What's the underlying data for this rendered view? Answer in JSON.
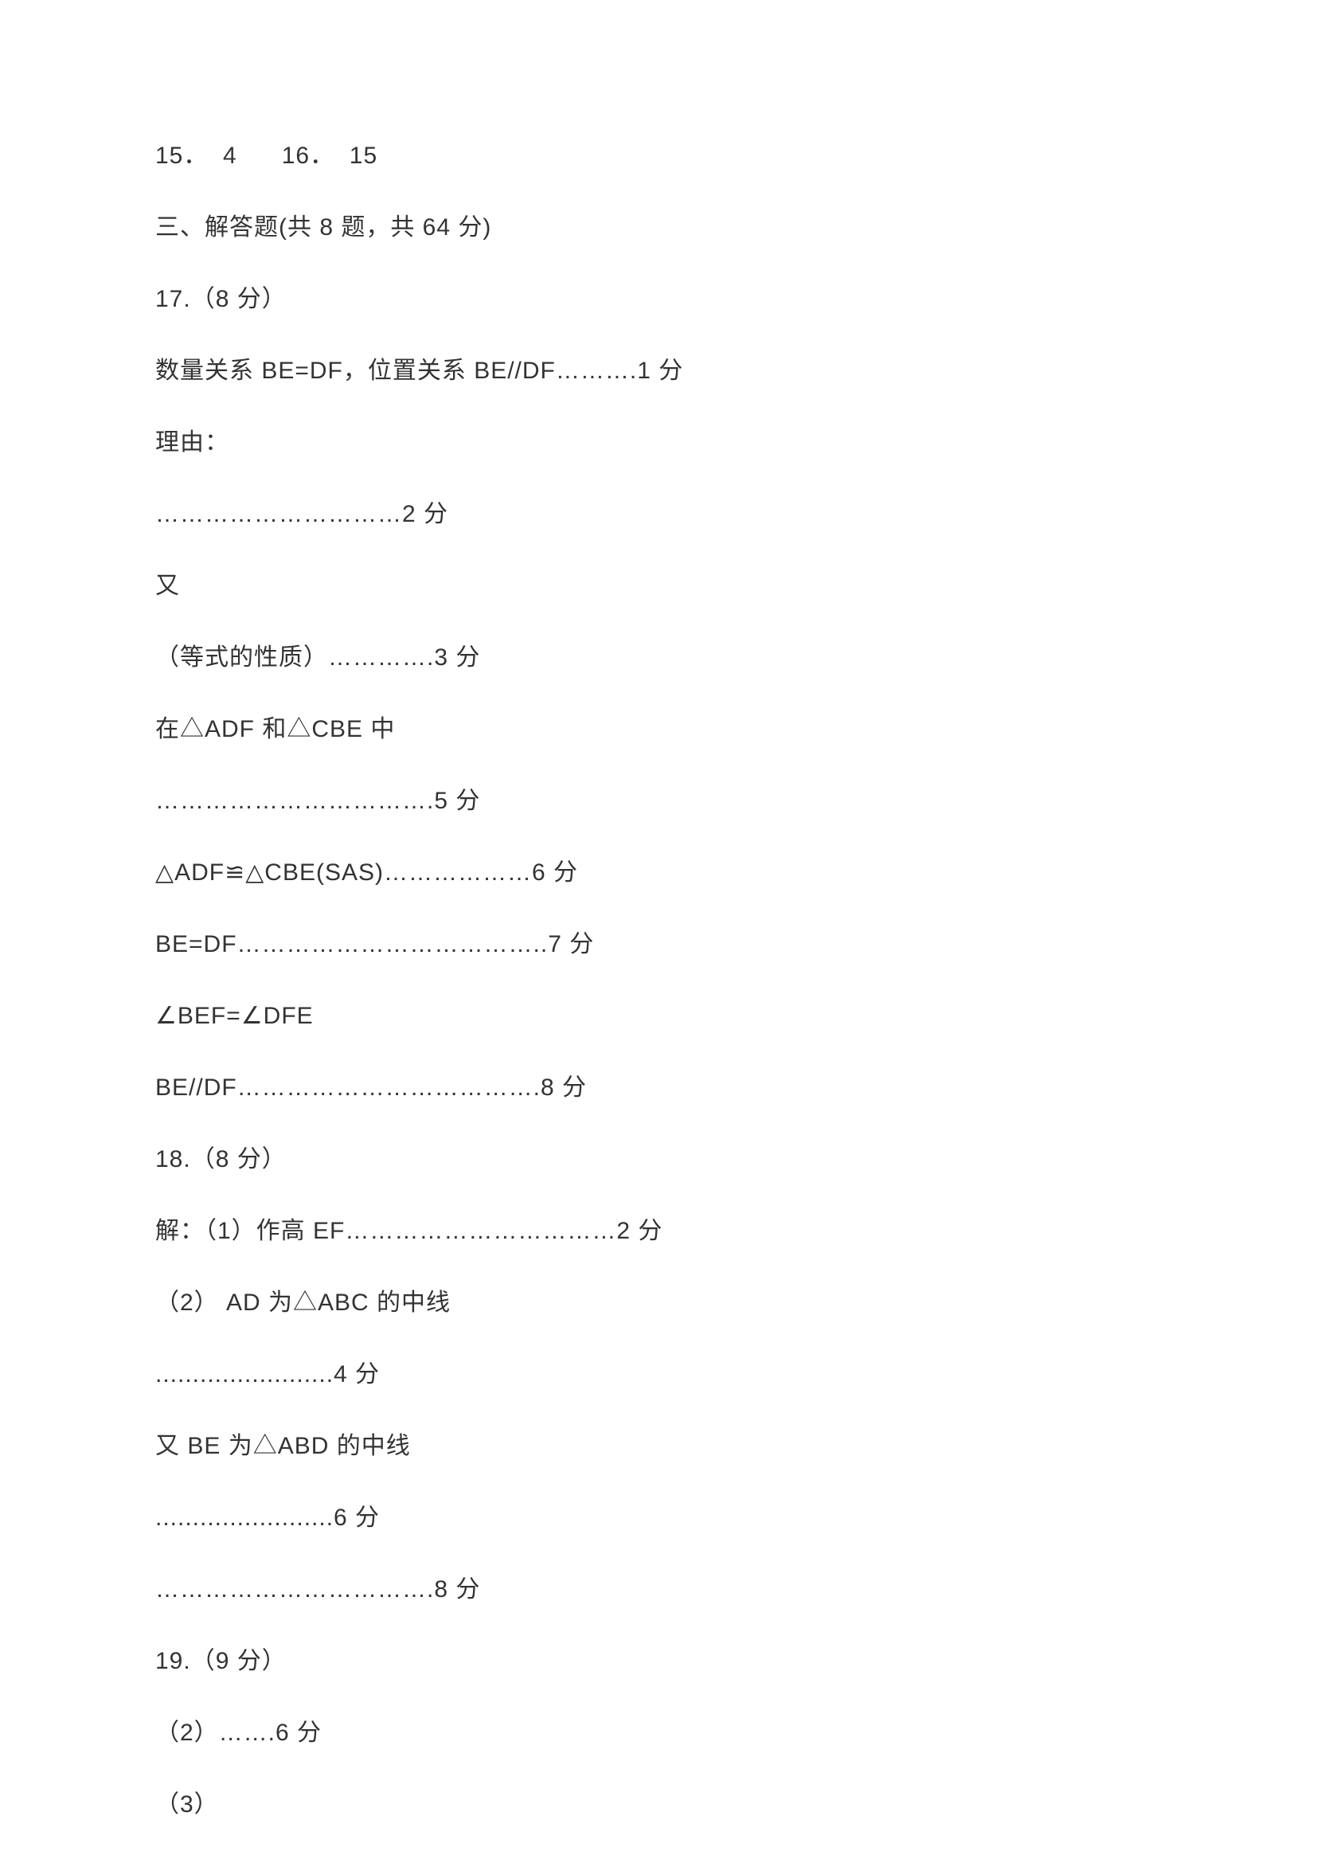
{
  "page": {
    "bg": "#ffffff",
    "text_color": "#333333",
    "font_size_pt": 22
  },
  "lines": {
    "l0": "15．  4      16．  15",
    "l1": "三、解答题(共 8 题，共 64 分)",
    "l2": "17.（8 分）",
    "l3": "数量关系 BE=DF，位置关系 BE//DF……….1 分",
    "l4": "理由：",
    "l5": "…………………………2 分",
    "l6": "又",
    "l7": "（等式的性质）………….3 分",
    "l8": "在△ADF 和△CBE 中",
    "l9": "…………………………….5 分",
    "l10": "△ADF≌△CBE(SAS)………………6 分",
    "l11": "BE=DF………………………………..7 分",
    "l12": "∠BEF=∠DFE",
    "l13": "BE//DF……………………………….8 分",
    "l14": "18.（8 分）",
    "l15": "解：（1）作高 EF……………………………2 分",
    "l16": "（2） AD 为△ABC 的中线",
    "l17": "........................4 分",
    "l18": "又 BE 为△ABD 的中线",
    "l19": "........................6 分",
    "l20": "…………………………….8 分",
    "l21": "19.（9 分）",
    "l22": "（2）…….6 分",
    "l23": "（3）"
  }
}
